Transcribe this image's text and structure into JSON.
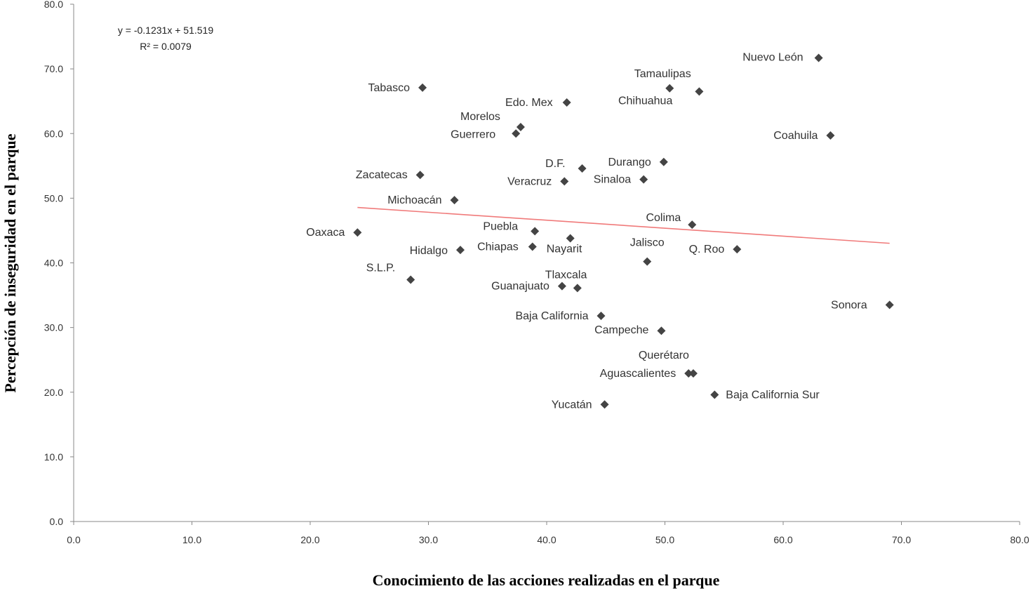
{
  "chart_data": {
    "type": "scatter",
    "xlabel": "Conocimiento  de las acciones realizadas  en el parque",
    "ylabel": "Percepción de  inseguridad  en el parque",
    "xlim": [
      0,
      80
    ],
    "ylim": [
      0,
      80
    ],
    "x_ticks": [
      "0.0",
      "10.0",
      "20.0",
      "30.0",
      "40.0",
      "50.0",
      "60.0",
      "70.0",
      "80.0"
    ],
    "y_ticks": [
      "0.0",
      "10.0",
      "20.0",
      "30.0",
      "40.0",
      "50.0",
      "60.0",
      "70.0",
      "80.0"
    ],
    "grid": false,
    "legend": "none",
    "marker_color": "#444444",
    "trendline": {
      "equation": "y = -0.1231x + 51.519",
      "r_squared": "R² = 0.0079",
      "slope": -0.1231,
      "intercept": 51.519,
      "x_range": [
        24.0,
        69.0
      ],
      "color": "#f07a7a"
    },
    "points": [
      {
        "label": "Nuevo León",
        "x": 63.0,
        "y": 71.7
      },
      {
        "label": "Tamaulipas",
        "x": 50.4,
        "y": 67.0
      },
      {
        "label": "Chihuahua",
        "x": 52.9,
        "y": 66.5
      },
      {
        "label": "Tabasco",
        "x": 29.5,
        "y": 67.1
      },
      {
        "label": "Edo. Mex",
        "x": 41.7,
        "y": 64.8
      },
      {
        "label": "Morelos",
        "x": 37.8,
        "y": 61.0
      },
      {
        "label": "Guerrero",
        "x": 37.4,
        "y": 60.0
      },
      {
        "label": "Coahuila",
        "x": 64.0,
        "y": 59.7
      },
      {
        "label": "D.F.",
        "x": 43.0,
        "y": 54.6
      },
      {
        "label": "Durango",
        "x": 49.9,
        "y": 55.6
      },
      {
        "label": "Zacatecas",
        "x": 29.3,
        "y": 53.6
      },
      {
        "label": "Veracruz",
        "x": 41.5,
        "y": 52.6
      },
      {
        "label": "Sinaloa",
        "x": 48.2,
        "y": 52.9
      },
      {
        "label": "Michoacán",
        "x": 32.2,
        "y": 49.7
      },
      {
        "label": "Colima",
        "x": 52.3,
        "y": 45.9
      },
      {
        "label": "Oaxaca",
        "x": 24.0,
        "y": 44.7
      },
      {
        "label": "Puebla",
        "x": 39.0,
        "y": 44.9
      },
      {
        "label": "Nayarit",
        "x": 42.0,
        "y": 43.8
      },
      {
        "label": "Chiapas",
        "x": 38.8,
        "y": 42.5
      },
      {
        "label": "Hidalgo",
        "x": 32.7,
        "y": 42.0
      },
      {
        "label": "Q. Roo",
        "x": 56.1,
        "y": 42.1
      },
      {
        "label": "Jalisco",
        "x": 48.5,
        "y": 40.2
      },
      {
        "label": "S.L.P.",
        "x": 28.5,
        "y": 37.4
      },
      {
        "label": "Tlaxcala",
        "x": 42.6,
        "y": 36.1
      },
      {
        "label": "Guanajuato",
        "x": 41.3,
        "y": 36.4
      },
      {
        "label": "Sonora",
        "x": 69.0,
        "y": 33.5
      },
      {
        "label": "Baja California",
        "x": 44.6,
        "y": 31.8
      },
      {
        "label": "Campeche",
        "x": 49.7,
        "y": 29.5
      },
      {
        "label": "Querétaro",
        "x": 52.4,
        "y": 22.9
      },
      {
        "label": "Aguascalientes",
        "x": 52.0,
        "y": 22.9
      },
      {
        "label": "Baja California Sur",
        "x": 54.2,
        "y": 19.6
      },
      {
        "label": "Yucatán",
        "x": 44.9,
        "y": 18.1
      }
    ]
  }
}
